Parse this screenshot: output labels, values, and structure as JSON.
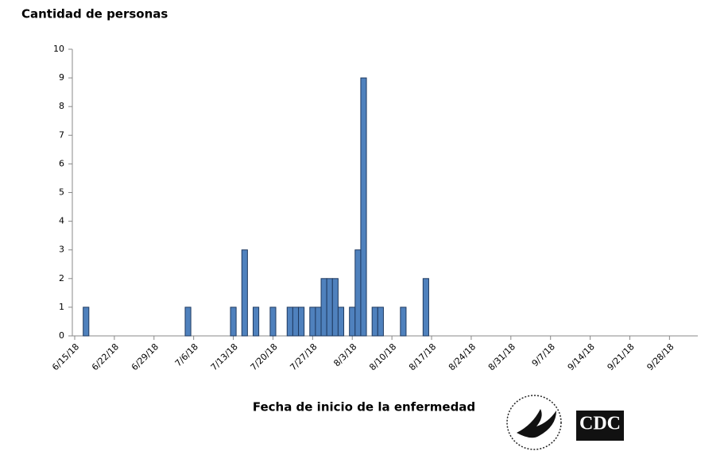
{
  "chart_data": {
    "type": "bar",
    "y_label": "Cantidad de personas",
    "x_label": "Fecha de inicio de la enfermedad",
    "x": [
      "6/17/18",
      "7/5/18",
      "7/13/18",
      "7/15/18",
      "7/17/18",
      "7/20/18",
      "7/23/18",
      "7/24/18",
      "7/25/18",
      "7/27/18",
      "7/28/18",
      "7/29/18",
      "7/30/18",
      "7/31/18",
      "8/1/18",
      "8/3/18",
      "8/4/18",
      "8/5/18",
      "8/7/18",
      "8/8/18",
      "8/12/18",
      "8/16/18"
    ],
    "values": [
      1,
      1,
      1,
      3,
      1,
      1,
      1,
      1,
      1,
      1,
      1,
      2,
      2,
      2,
      1,
      1,
      3,
      9,
      1,
      1,
      1,
      2
    ],
    "color": "#4f81bd",
    "xlim": [
      "6/15/18",
      "10/3/18"
    ],
    "xticks": [
      "6/15/18",
      "6/22/18",
      "6/29/18",
      "7/6/18",
      "7/13/18",
      "7/20/18",
      "7/27/18",
      "8/3/18",
      "8/10/18",
      "8/17/18",
      "8/24/18",
      "8/31/18",
      "9/7/18",
      "9/14/18",
      "9/21/18",
      "9/28/18"
    ],
    "ylim": [
      0,
      10
    ],
    "yticks": [
      0,
      1,
      2,
      3,
      4,
      5,
      6,
      7,
      8,
      9,
      10
    ],
    "grid": false,
    "logo_text": "CDC"
  }
}
